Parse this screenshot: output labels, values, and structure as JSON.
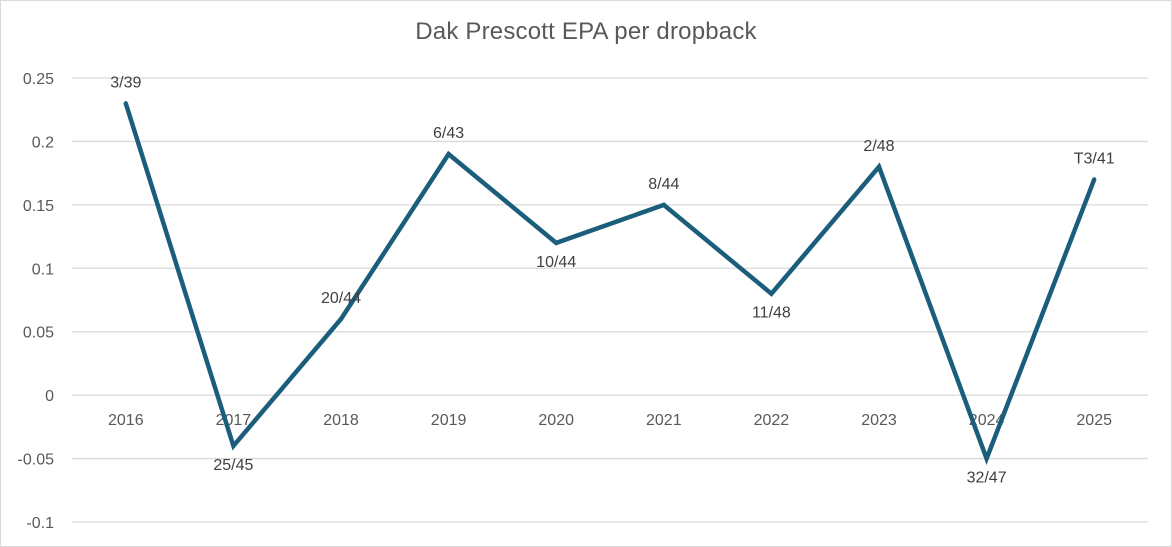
{
  "chart_data": {
    "type": "line",
    "title": "Dak Prescott EPA per dropback",
    "categories": [
      "2016",
      "2017",
      "2018",
      "2019",
      "2020",
      "2021",
      "2022",
      "2023",
      "2024",
      "2025"
    ],
    "series": [
      {
        "name": "EPA per dropback",
        "values": [
          0.23,
          -0.04,
          0.06,
          0.19,
          0.12,
          0.15,
          0.08,
          0.18,
          -0.05,
          0.17
        ],
        "data_labels": [
          "3/39",
          "25/45",
          "20/44",
          "6/43",
          "10/44",
          "8/44",
          "11/48",
          "2/48",
          "32/47",
          "T3/41"
        ],
        "color": "#1b5e7b"
      }
    ],
    "y_ticks": [
      "0.25",
      "0.2",
      "0.15",
      "0.1",
      "0.05",
      "0",
      "-0.05",
      "-0.1"
    ],
    "ylim": [
      -0.1,
      0.25
    ],
    "xlabel": "",
    "ylabel": "",
    "grid": true,
    "legend": "none"
  },
  "colors": {
    "line": "#1b5e7b",
    "grid": "#d9d9d9",
    "text": "#595959"
  }
}
